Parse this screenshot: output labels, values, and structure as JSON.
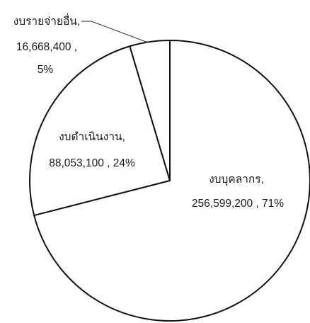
{
  "chart_data": {
    "type": "pie",
    "slices": [
      {
        "category": "งบบุคลากร",
        "value": 256599200,
        "percent": 71,
        "label_line1": "งบบุคลากร,",
        "label_line2": "256,599,200 , 71%"
      },
      {
        "category": "งบดำเนินงาน",
        "value": 88053100,
        "percent": 24,
        "label_line1": "งบดำเนินงาน,",
        "label_line2": "88,053,100 , 24%"
      },
      {
        "category": "งบรายจ่ายอื่น",
        "value": 16668400,
        "percent": 5,
        "label_line1": "งบรายจ่ายอื่น,",
        "label_line2": "16,668,400 ,",
        "label_line3": "5%"
      }
    ],
    "start_angle": "12 o'clock",
    "direction": "clockwise",
    "fill_color": "#ffffff",
    "stroke_color": "#111111"
  }
}
